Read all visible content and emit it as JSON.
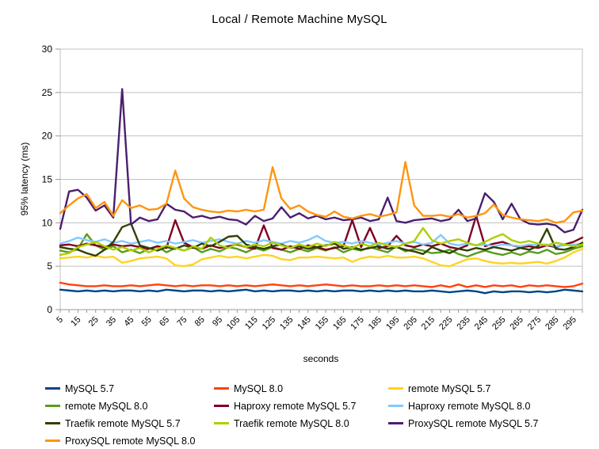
{
  "colors": {
    "grid": "#c0c0c0",
    "axis": "#999999",
    "text": "#000000",
    "background": "#ffffff"
  },
  "chart_data": {
    "type": "line",
    "title": "Local / Remote Machine MySQL",
    "xlabel": "seconds",
    "ylabel": "95% latency (ms)",
    "ylim": [
      0,
      30
    ],
    "ytick_step": 5,
    "xlim": [
      5,
      300
    ],
    "x_step": 5,
    "x_label_every_points": 2,
    "grid": "horizontal",
    "legend_position": "bottom",
    "x": [
      5,
      10,
      15,
      20,
      25,
      30,
      35,
      40,
      45,
      50,
      55,
      60,
      65,
      70,
      75,
      80,
      85,
      90,
      95,
      100,
      105,
      110,
      115,
      120,
      125,
      130,
      135,
      140,
      145,
      150,
      155,
      160,
      165,
      170,
      175,
      180,
      185,
      190,
      195,
      200,
      205,
      210,
      215,
      220,
      225,
      230,
      235,
      240,
      245,
      250,
      255,
      260,
      265,
      270,
      275,
      280,
      285,
      290,
      295,
      300
    ],
    "series": [
      {
        "name": "MySQL 5.7",
        "color": "#004586",
        "values": [
          2.3,
          2.2,
          2.1,
          2.2,
          2.1,
          2.2,
          2.1,
          2.2,
          2.2,
          2.1,
          2.2,
          2.1,
          2.3,
          2.2,
          2.1,
          2.2,
          2.2,
          2.1,
          2.2,
          2.1,
          2.2,
          2.3,
          2.1,
          2.2,
          2.1,
          2.2,
          2.2,
          2.1,
          2.2,
          2.1,
          2.2,
          2.1,
          2.2,
          2.2,
          2.1,
          2.2,
          2.1,
          2.2,
          2.1,
          2.2,
          2.1,
          2.1,
          2.2,
          2.1,
          2.0,
          2.1,
          2.2,
          2.1,
          1.9,
          2.1,
          2.0,
          2.1,
          2.1,
          2.0,
          2.1,
          2.0,
          2.1,
          2.3,
          2.2,
          2.1
        ]
      },
      {
        "name": "MySQL 8.0",
        "color": "#FF420E",
        "values": [
          3.1,
          2.9,
          2.8,
          2.7,
          2.7,
          2.8,
          2.7,
          2.7,
          2.8,
          2.7,
          2.8,
          2.9,
          2.8,
          2.7,
          2.8,
          2.7,
          2.8,
          2.8,
          2.7,
          2.8,
          2.7,
          2.8,
          2.7,
          2.8,
          2.9,
          2.8,
          2.7,
          2.8,
          2.7,
          2.8,
          2.9,
          2.8,
          2.7,
          2.8,
          2.7,
          2.7,
          2.8,
          2.7,
          2.8,
          2.7,
          2.8,
          2.7,
          2.6,
          2.8,
          2.6,
          2.9,
          2.6,
          2.8,
          2.6,
          2.8,
          2.7,
          2.8,
          2.6,
          2.8,
          2.7,
          2.8,
          2.7,
          2.6,
          2.7,
          3.0
        ]
      },
      {
        "name": "remote MySQL 5.7",
        "color": "#FFD320",
        "values": [
          5.9,
          6.0,
          6.1,
          6.0,
          6.2,
          6.0,
          6.1,
          5.4,
          5.6,
          5.9,
          6.0,
          6.1,
          5.9,
          5.1,
          5.0,
          5.2,
          5.8,
          6.0,
          6.2,
          6.0,
          6.1,
          5.9,
          6.1,
          6.3,
          6.2,
          5.8,
          5.7,
          6.0,
          6.0,
          6.1,
          6.0,
          5.9,
          6.0,
          5.5,
          5.9,
          6.1,
          6.0,
          6.2,
          6.0,
          6.0,
          6.1,
          5.9,
          5.5,
          5.1,
          5.0,
          5.4,
          5.8,
          5.9,
          5.6,
          5.4,
          5.3,
          5.4,
          5.3,
          5.4,
          5.5,
          5.3,
          5.6,
          6.0,
          6.6,
          7.0
        ]
      },
      {
        "name": "remote MySQL 8.0",
        "color": "#579D1C",
        "values": [
          6.8,
          6.6,
          7.0,
          8.7,
          7.4,
          6.9,
          7.3,
          6.6,
          6.9,
          6.5,
          7.0,
          7.3,
          6.6,
          7.1,
          6.8,
          7.2,
          6.6,
          7.0,
          6.7,
          7.2,
          7.0,
          6.6,
          7.1,
          6.8,
          7.2,
          6.9,
          6.6,
          7.0,
          6.7,
          7.1,
          6.8,
          7.2,
          6.6,
          7.0,
          6.8,
          7.2,
          6.9,
          6.6,
          7.3,
          6.7,
          7.0,
          6.8,
          6.5,
          6.6,
          6.9,
          6.4,
          6.1,
          6.5,
          6.8,
          6.5,
          6.3,
          6.6,
          6.3,
          6.7,
          6.5,
          6.9,
          6.4,
          6.6,
          7.0,
          7.3
        ]
      },
      {
        "name": "Haproxy remote MySQL 5.7",
        "color": "#7E0021",
        "values": [
          7.4,
          7.5,
          7.3,
          7.6,
          7.4,
          7.2,
          7.5,
          7.3,
          7.4,
          7.2,
          7.0,
          7.3,
          7.1,
          10.3,
          7.7,
          7.2,
          7.0,
          7.4,
          7.1,
          7.3,
          7.5,
          7.2,
          7.0,
          9.7,
          7.1,
          6.9,
          7.3,
          7.0,
          7.4,
          7.2,
          6.9,
          7.1,
          7.3,
          10.3,
          7.2,
          9.4,
          7.1,
          7.3,
          8.5,
          7.4,
          7.2,
          7.5,
          7.3,
          7.6,
          7.2,
          7.0,
          7.4,
          10.8,
          7.3,
          7.6,
          7.8,
          7.4,
          7.2,
          7.3,
          7.1,
          7.4,
          7.2,
          7.5,
          7.8,
          8.3
        ]
      },
      {
        "name": "Haproxy remote MySQL 8.0",
        "color": "#83CAFF",
        "values": [
          7.6,
          7.9,
          8.3,
          8.0,
          7.8,
          8.1,
          7.7,
          7.9,
          7.6,
          7.8,
          8.0,
          7.7,
          7.9,
          7.6,
          7.8,
          8.0,
          7.7,
          7.9,
          8.1,
          7.8,
          7.6,
          7.9,
          7.7,
          8.0,
          7.8,
          7.6,
          7.9,
          7.7,
          8.0,
          8.5,
          7.9,
          7.7,
          7.8,
          7.6,
          7.9,
          7.7,
          7.5,
          7.7,
          7.9,
          7.6,
          7.8,
          7.5,
          7.7,
          8.6,
          7.6,
          7.4,
          7.6,
          7.4,
          7.5,
          7.3,
          7.5,
          7.4,
          7.3,
          7.5,
          7.4,
          7.5,
          7.3,
          7.4,
          7.5,
          7.5
        ]
      },
      {
        "name": "Traefik remote MySQL 5.7",
        "color": "#314004",
        "values": [
          7.2,
          7.0,
          6.9,
          6.5,
          6.2,
          6.9,
          7.8,
          9.5,
          9.9,
          7.4,
          7.1,
          6.8,
          7.2,
          7.0,
          7.4,
          7.1,
          7.6,
          7.3,
          7.8,
          8.4,
          8.5,
          7.5,
          7.2,
          7.0,
          7.3,
          7.5,
          7.1,
          7.3,
          7.0,
          7.2,
          7.4,
          7.6,
          7.0,
          7.2,
          6.9,
          7.1,
          7.3,
          7.0,
          7.2,
          6.9,
          6.7,
          6.4,
          7.2,
          6.8,
          6.5,
          7.0,
          6.8,
          7.1,
          6.9,
          7.2,
          7.0,
          6.8,
          7.1,
          6.9,
          7.3,
          9.3,
          7.0,
          6.9,
          7.2,
          7.7
        ]
      },
      {
        "name": "Traefik remote MySQL 8.0",
        "color": "#AECF00",
        "values": [
          6.3,
          6.5,
          7.2,
          7.5,
          7.8,
          7.3,
          6.9,
          7.2,
          6.8,
          7.1,
          6.6,
          7.0,
          7.4,
          7.1,
          6.8,
          7.3,
          7.0,
          8.3,
          7.4,
          7.1,
          7.6,
          7.2,
          7.5,
          7.3,
          7.7,
          7.4,
          7.1,
          7.5,
          7.2,
          7.6,
          7.3,
          7.8,
          7.4,
          7.1,
          7.6,
          7.3,
          7.7,
          7.4,
          7.2,
          7.6,
          7.9,
          9.4,
          8.0,
          7.6,
          7.9,
          8.1,
          7.7,
          7.4,
          7.8,
          8.3,
          8.7,
          8.0,
          7.7,
          7.9,
          7.6,
          7.4,
          7.7,
          7.5,
          7.3,
          7.5
        ]
      },
      {
        "name": "ProxySQL remote MySQL 5.7",
        "color": "#4B1F6F",
        "values": [
          9.3,
          13.6,
          13.8,
          12.9,
          11.4,
          12.0,
          10.6,
          25.4,
          9.8,
          10.6,
          10.2,
          10.4,
          12.2,
          11.5,
          11.3,
          10.6,
          10.8,
          10.5,
          10.7,
          10.4,
          10.3,
          9.8,
          10.8,
          10.2,
          10.5,
          11.8,
          10.6,
          11.1,
          10.5,
          10.8,
          10.4,
          10.6,
          10.3,
          10.4,
          10.6,
          10.2,
          10.4,
          12.9,
          10.2,
          10.0,
          10.3,
          10.4,
          10.5,
          10.2,
          10.4,
          11.5,
          10.2,
          10.5,
          13.4,
          12.4,
          10.4,
          12.2,
          10.4,
          9.9,
          9.8,
          9.9,
          9.7,
          8.9,
          9.2,
          11.5
        ]
      },
      {
        "name": "ProxySQL remote MySQL 8.0",
        "color": "#FF950E",
        "values": [
          11.1,
          12.0,
          12.8,
          13.3,
          11.7,
          12.4,
          10.8,
          12.6,
          11.7,
          12.0,
          11.5,
          11.6,
          12.2,
          16.0,
          12.8,
          11.8,
          11.5,
          11.3,
          11.2,
          11.4,
          11.3,
          11.5,
          11.3,
          11.5,
          16.4,
          12.8,
          11.6,
          12.0,
          11.3,
          10.9,
          10.7,
          11.3,
          10.7,
          10.5,
          10.8,
          11.0,
          10.7,
          10.9,
          11.2,
          17.0,
          12.0,
          10.8,
          10.8,
          10.9,
          10.7,
          11.0,
          10.6,
          10.8,
          11.1,
          12.1,
          10.9,
          10.6,
          10.4,
          10.3,
          10.2,
          10.4,
          10.0,
          10.2,
          11.2,
          11.4
        ]
      }
    ]
  }
}
